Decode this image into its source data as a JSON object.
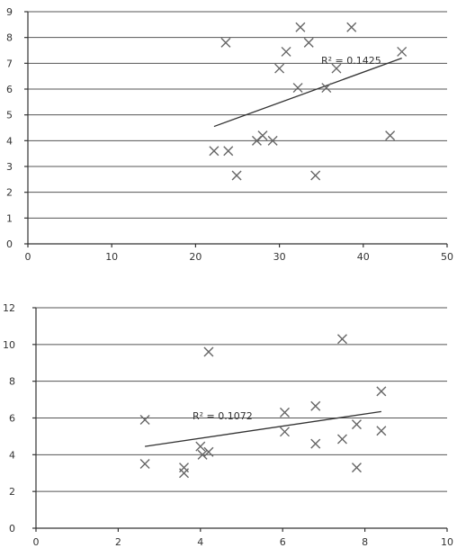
{
  "chart_data": [
    {
      "type": "scatter",
      "title": "",
      "xlabel": "",
      "ylabel": "",
      "xlim": [
        0,
        50
      ],
      "ylim": [
        0,
        9
      ],
      "x_ticks": [
        "0",
        "10",
        "20",
        "30",
        "40",
        "50"
      ],
      "y_ticks": [
        "0",
        "1",
        "2",
        "3",
        "4",
        "5",
        "6",
        "7",
        "8",
        "9"
      ],
      "grid": true,
      "marker": "x",
      "points": [
        {
          "x": 22.2,
          "y": 3.6
        },
        {
          "x": 23.6,
          "y": 7.8
        },
        {
          "x": 23.9,
          "y": 3.6
        },
        {
          "x": 24.9,
          "y": 2.65
        },
        {
          "x": 27.3,
          "y": 4.0
        },
        {
          "x": 28.0,
          "y": 4.2
        },
        {
          "x": 29.2,
          "y": 4.0
        },
        {
          "x": 30.0,
          "y": 6.8
        },
        {
          "x": 30.8,
          "y": 7.45
        },
        {
          "x": 32.2,
          "y": 6.05
        },
        {
          "x": 32.5,
          "y": 8.4
        },
        {
          "x": 33.5,
          "y": 7.8
        },
        {
          "x": 34.3,
          "y": 2.65
        },
        {
          "x": 35.6,
          "y": 6.05
        },
        {
          "x": 36.8,
          "y": 6.8
        },
        {
          "x": 38.6,
          "y": 8.4
        },
        {
          "x": 43.2,
          "y": 4.2
        },
        {
          "x": 44.6,
          "y": 7.45
        }
      ],
      "trendline": {
        "x": [
          22.2,
          44.6
        ],
        "y": [
          4.55,
          7.2
        ]
      },
      "annotation": "R² = 0.1425"
    },
    {
      "type": "scatter",
      "title": "",
      "xlabel": "",
      "ylabel": "",
      "xlim": [
        0,
        10
      ],
      "ylim": [
        0,
        12
      ],
      "x_ticks": [
        "0",
        "2",
        "4",
        "6",
        "8",
        "10"
      ],
      "y_ticks": [
        "0",
        "2",
        "4",
        "6",
        "8",
        "10",
        "12"
      ],
      "grid": true,
      "marker": "x",
      "points": [
        {
          "x": 2.65,
          "y": 5.9
        },
        {
          "x": 2.65,
          "y": 3.5
        },
        {
          "x": 3.6,
          "y": 3.3
        },
        {
          "x": 3.6,
          "y": 3.0
        },
        {
          "x": 4.0,
          "y": 4.45
        },
        {
          "x": 4.05,
          "y": 4.0
        },
        {
          "x": 4.2,
          "y": 4.15
        },
        {
          "x": 4.2,
          "y": 9.6
        },
        {
          "x": 6.05,
          "y": 6.3
        },
        {
          "x": 6.05,
          "y": 5.25
        },
        {
          "x": 6.8,
          "y": 6.65
        },
        {
          "x": 6.8,
          "y": 4.6
        },
        {
          "x": 7.45,
          "y": 10.3
        },
        {
          "x": 7.45,
          "y": 4.85
        },
        {
          "x": 7.8,
          "y": 5.65
        },
        {
          "x": 7.8,
          "y": 3.3
        },
        {
          "x": 8.4,
          "y": 7.45
        },
        {
          "x": 8.4,
          "y": 5.3
        }
      ],
      "trendline": {
        "x": [
          2.65,
          8.4
        ],
        "y": [
          4.45,
          6.35
        ]
      },
      "annotation": "R² = 0.1072"
    }
  ]
}
